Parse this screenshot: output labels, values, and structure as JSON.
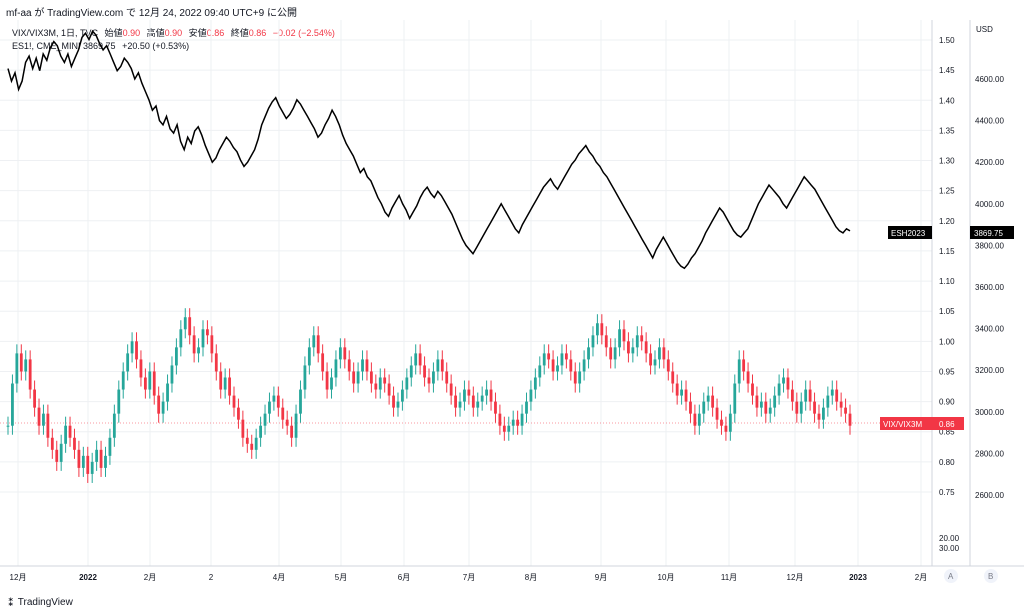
{
  "header": {
    "text": "mf-aa が TradingView.com で 12月 24, 2022 09:40 UTC+9 に公開"
  },
  "legend": {
    "vix": {
      "symbol": "VIX/VIX3M, 1日, TVC",
      "open_label": "始値",
      "open": "0.90",
      "high_label": "高値",
      "high": "0.90",
      "low_label": "安値",
      "low": "0.86",
      "close_label": "終値",
      "close": "0.86",
      "change": "−0.02 (−2.54%)"
    },
    "es": {
      "symbol": "ES1!, CME_MINI",
      "value": "3869.75",
      "change": "+20.50 (+0.53%)"
    }
  },
  "footer": {
    "brand": "TradingView"
  },
  "colors": {
    "up": "#26a69a",
    "down": "#f23645",
    "line": "#000000",
    "grid": "#eef0f3",
    "axis_text": "#131722"
  },
  "chart_data": {
    "type": "line",
    "x_tick_labels": [
      "12月",
      "2022",
      "2月",
      "2",
      "4月",
      "5月",
      "6月",
      "7月",
      "8月",
      "9月",
      "10月",
      "11月",
      "12月",
      "2023",
      "2月"
    ],
    "left_axis_unit": "",
    "right_axis_unit": "USD",
    "ratio_axis_ticks": [
      "1.50",
      "1.45",
      "1.40",
      "1.35",
      "1.30",
      "1.25",
      "1.20",
      "1.15",
      "1.10",
      "1.05",
      "1.00",
      "0.95",
      "0.90",
      "0.85",
      "0.80",
      "0.75",
      "20.00",
      "30.00"
    ],
    "usd_axis_ticks": [
      "4600.00",
      "4400.00",
      "4200.00",
      "4000.00",
      "3800.00",
      "3600.00",
      "3400.00",
      "3200.00",
      "3000.00",
      "2800.00",
      "2600.00"
    ],
    "ratio_range": [
      0.71,
      1.52
    ],
    "usd_range": [
      2450,
      4860
    ],
    "series": [
      {
        "name": "ESH2023",
        "kind": "line",
        "last_value": "3869.75",
        "values": [
          4650,
          4590,
          4630,
          4550,
          4590,
          4680,
          4710,
          4650,
          4700,
          4640,
          4720,
          4690,
          4750,
          4780,
          4760,
          4710,
          4680,
          4720,
          4660,
          4700,
          4740,
          4800,
          4820,
          4790,
          4830,
          4810,
          4770,
          4740,
          4760,
          4720,
          4680,
          4640,
          4660,
          4700,
          4680,
          4650,
          4600,
          4630,
          4580,
          4540,
          4500,
          4450,
          4470,
          4400,
          4380,
          4420,
          4360,
          4340,
          4380,
          4300,
          4260,
          4320,
          4290,
          4350,
          4370,
          4330,
          4280,
          4240,
          4200,
          4220,
          4260,
          4290,
          4320,
          4300,
          4270,
          4250,
          4210,
          4180,
          4200,
          4230,
          4260,
          4310,
          4380,
          4420,
          4460,
          4490,
          4510,
          4470,
          4440,
          4410,
          4430,
          4460,
          4500,
          4480,
          4450,
          4420,
          4390,
          4360,
          4320,
          4340,
          4380,
          4410,
          4450,
          4420,
          4380,
          4330,
          4290,
          4260,
          4230,
          4190,
          4150,
          4170,
          4130,
          4110,
          4070,
          4030,
          4000,
          3960,
          3940,
          3980,
          4010,
          4040,
          4000,
          3970,
          3930,
          3960,
          3990,
          4030,
          4060,
          4080,
          4050,
          4030,
          4060,
          4040,
          4010,
          3980,
          3950,
          3910,
          3870,
          3830,
          3800,
          3780,
          3760,
          3790,
          3820,
          3850,
          3880,
          3910,
          3940,
          3970,
          4000,
          3970,
          3940,
          3910,
          3880,
          3860,
          3900,
          3930,
          3960,
          3990,
          4020,
          4050,
          4080,
          4100,
          4120,
          4090,
          4070,
          4100,
          4130,
          4160,
          4190,
          4210,
          4240,
          4260,
          4280,
          4250,
          4230,
          4200,
          4180,
          4150,
          4130,
          4100,
          4070,
          4040,
          4010,
          3980,
          3950,
          3920,
          3890,
          3860,
          3830,
          3800,
          3770,
          3740,
          3780,
          3810,
          3840,
          3810,
          3780,
          3750,
          3720,
          3700,
          3690,
          3710,
          3740,
          3760,
          3790,
          3820,
          3860,
          3890,
          3920,
          3950,
          3980,
          3960,
          3930,
          3900,
          3870,
          3850,
          3840,
          3860,
          3880,
          3920,
          3960,
          4000,
          4030,
          4060,
          4090,
          4070,
          4050,
          4030,
          4000,
          3980,
          4010,
          4040,
          4070,
          4100,
          4130,
          4110,
          4090,
          4070,
          4040,
          4010,
          3980,
          3950,
          3920,
          3890,
          3870,
          3860,
          3880,
          3869.75
        ]
      },
      {
        "name": "VIX/VIX3M",
        "kind": "candlestick",
        "last_value": "0.86",
        "closes": [
          0.86,
          0.93,
          0.98,
          0.95,
          0.97,
          0.92,
          0.89,
          0.86,
          0.88,
          0.84,
          0.82,
          0.8,
          0.83,
          0.86,
          0.84,
          0.82,
          0.79,
          0.81,
          0.78,
          0.8,
          0.82,
          0.79,
          0.81,
          0.84,
          0.88,
          0.92,
          0.95,
          0.98,
          1.0,
          0.97,
          0.94,
          0.92,
          0.95,
          0.91,
          0.88,
          0.9,
          0.93,
          0.96,
          0.99,
          1.02,
          1.04,
          1.01,
          0.98,
          0.99,
          1.02,
          1.01,
          0.98,
          0.95,
          0.92,
          0.94,
          0.91,
          0.89,
          0.87,
          0.84,
          0.83,
          0.82,
          0.84,
          0.86,
          0.88,
          0.9,
          0.91,
          0.89,
          0.87,
          0.86,
          0.84,
          0.88,
          0.92,
          0.96,
          0.99,
          1.01,
          0.98,
          0.95,
          0.92,
          0.94,
          0.97,
          0.99,
          0.97,
          0.95,
          0.93,
          0.95,
          0.97,
          0.95,
          0.93,
          0.92,
          0.94,
          0.93,
          0.91,
          0.89,
          0.9,
          0.92,
          0.94,
          0.96,
          0.98,
          0.96,
          0.94,
          0.93,
          0.95,
          0.97,
          0.95,
          0.93,
          0.91,
          0.89,
          0.9,
          0.92,
          0.91,
          0.89,
          0.9,
          0.91,
          0.92,
          0.9,
          0.88,
          0.86,
          0.85,
          0.86,
          0.87,
          0.86,
          0.88,
          0.9,
          0.92,
          0.94,
          0.96,
          0.98,
          0.97,
          0.95,
          0.96,
          0.98,
          0.97,
          0.95,
          0.93,
          0.95,
          0.97,
          0.99,
          1.01,
          1.03,
          1.01,
          0.99,
          0.97,
          0.99,
          1.02,
          1.0,
          0.98,
          0.99,
          1.01,
          1.0,
          0.98,
          0.96,
          0.97,
          0.99,
          0.97,
          0.95,
          0.93,
          0.91,
          0.92,
          0.9,
          0.88,
          0.86,
          0.88,
          0.9,
          0.91,
          0.89,
          0.87,
          0.86,
          0.85,
          0.88,
          0.93,
          0.97,
          0.95,
          0.93,
          0.91,
          0.89,
          0.9,
          0.88,
          0.89,
          0.91,
          0.93,
          0.94,
          0.92,
          0.9,
          0.88,
          0.9,
          0.92,
          0.9,
          0.88,
          0.87,
          0.89,
          0.91,
          0.92,
          0.9,
          0.89,
          0.88,
          0.86
        ]
      }
    ]
  }
}
